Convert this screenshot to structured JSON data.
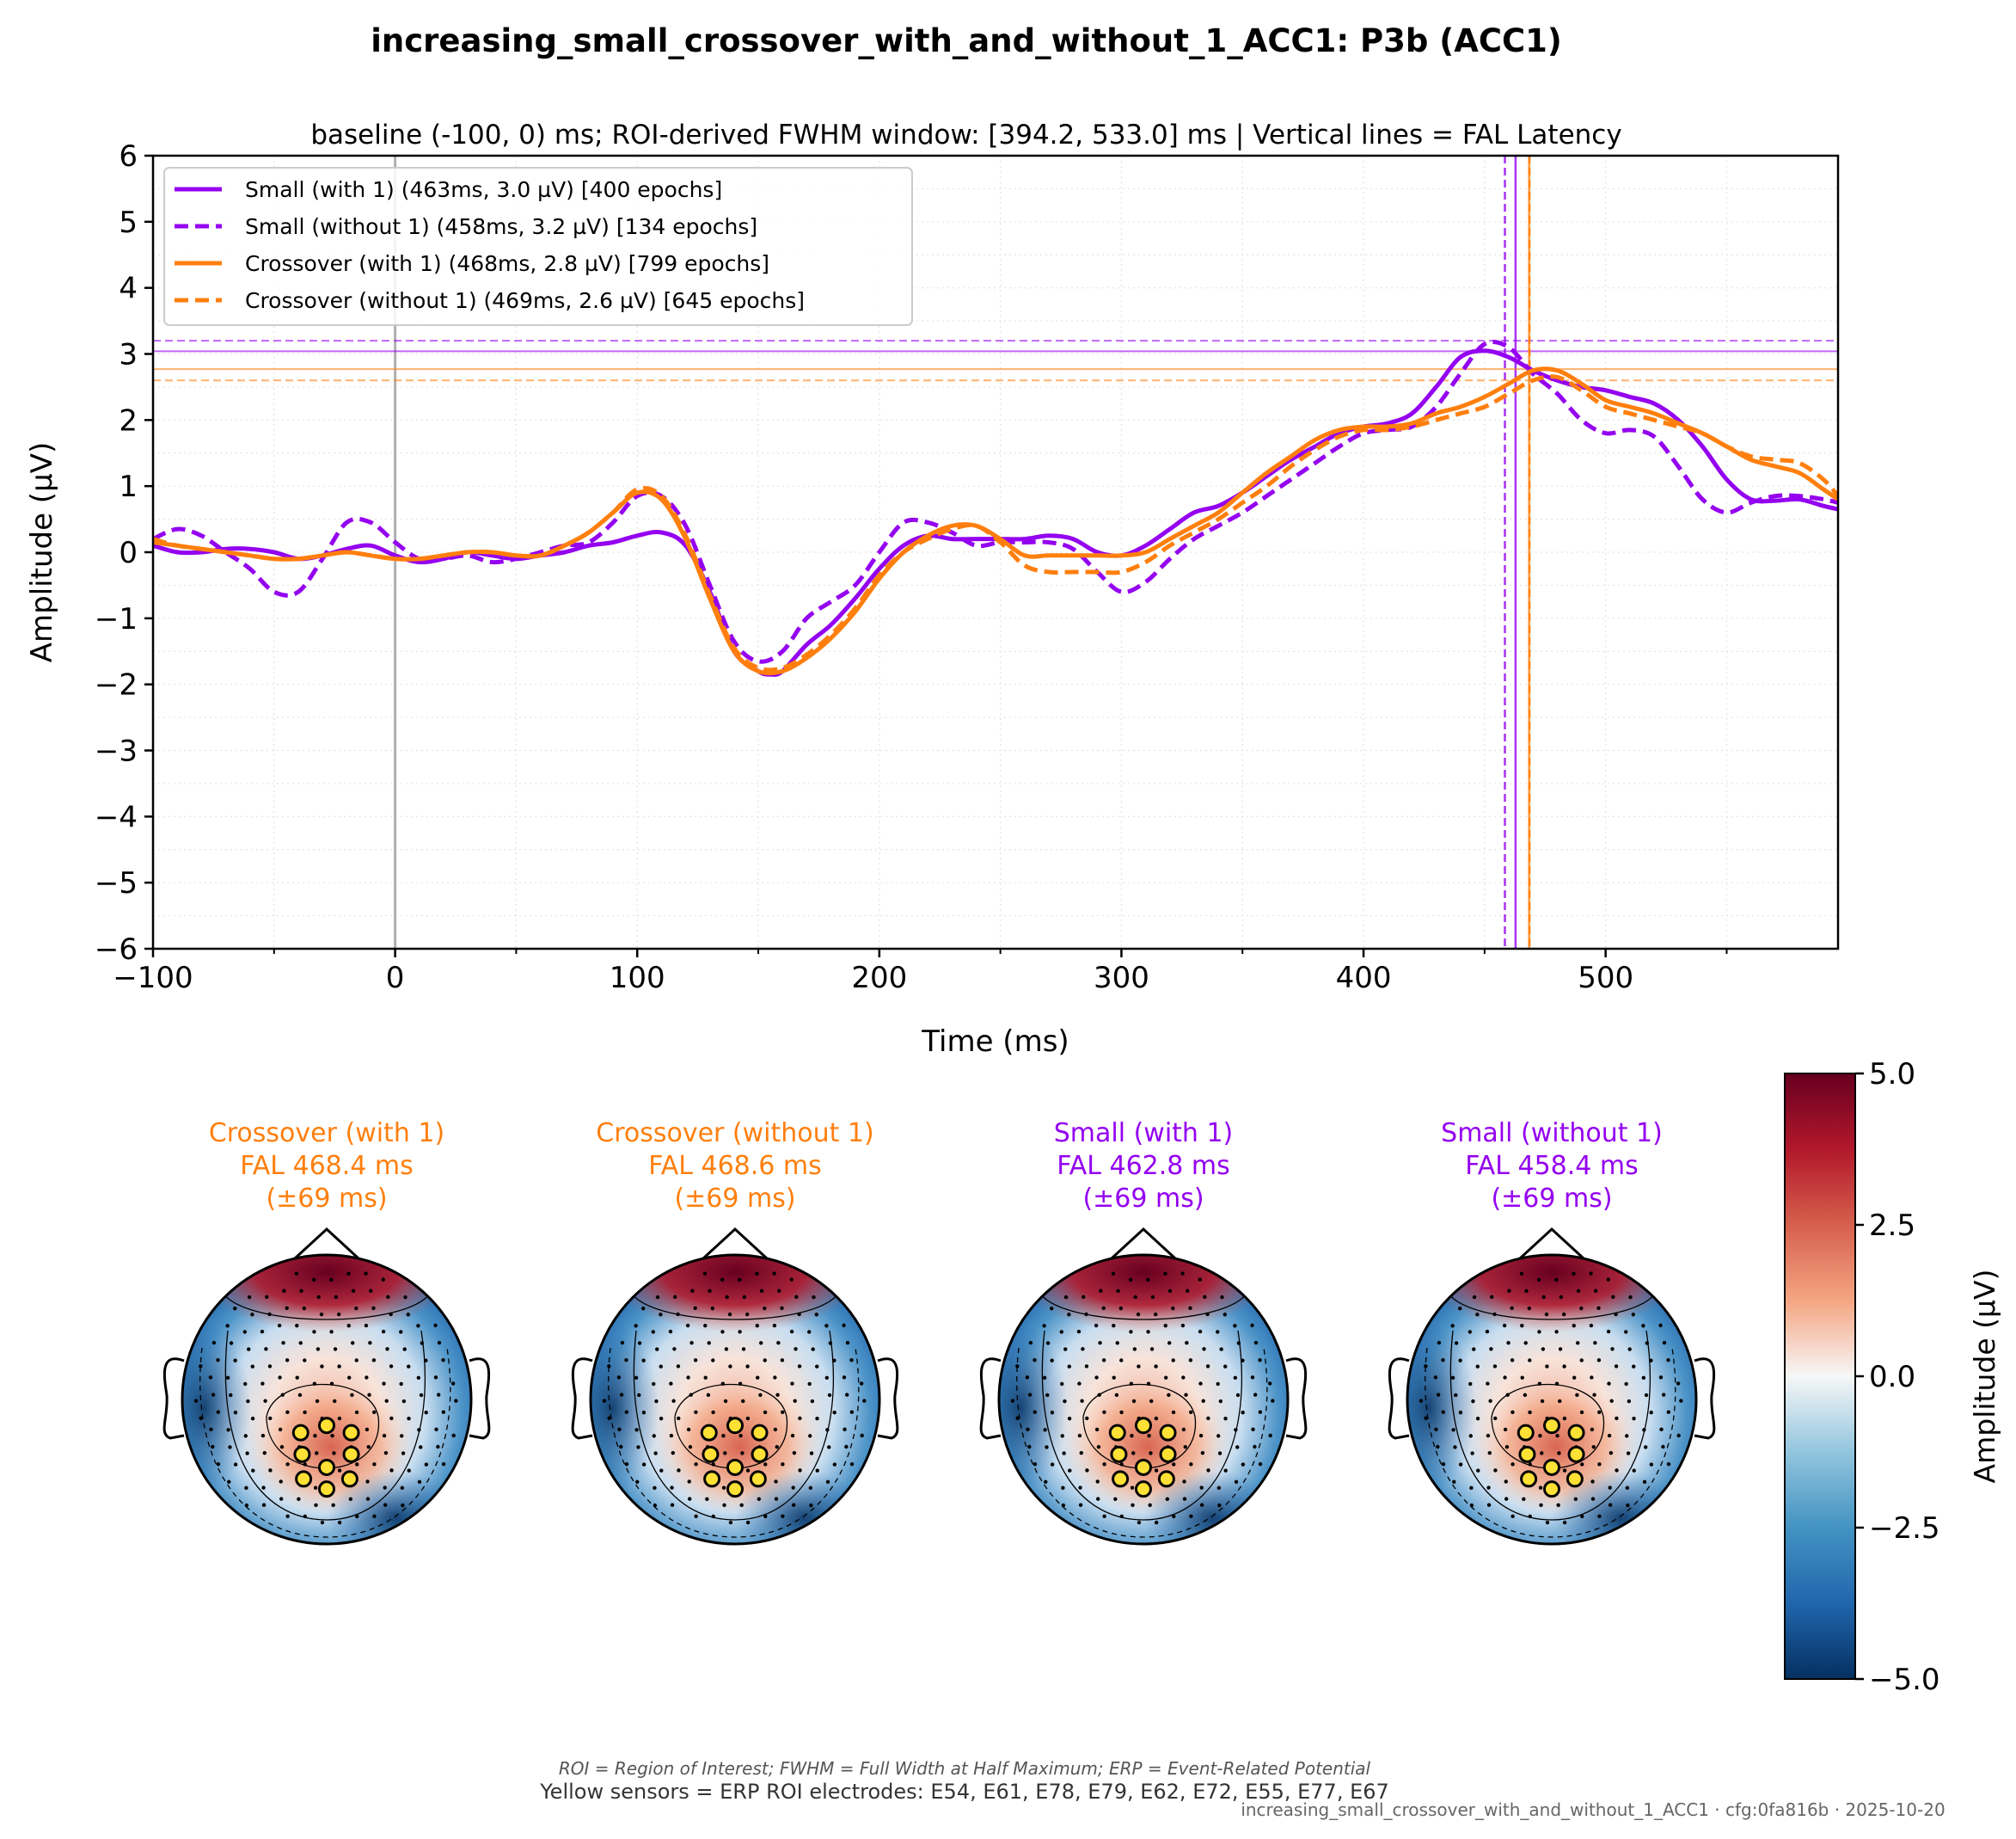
{
  "figure": {
    "title": "increasing_small_crossover_with_and_without_1_ACC1: P3b (ACC1)",
    "footer": {
      "abbrev": "ROI = Region of Interest; FWHM = Full Width at Half Maximum; ERP = Event-Related Potential",
      "sensors": "Yellow sensors = ERP ROI electrodes: E54, E61, E78, E79, E62, E72, E55, E77, E67",
      "stamp": "increasing_small_crossover_with_and_without_1_ACC1 · cfg:0fa816b · 2025-10-20"
    }
  },
  "chart_data": [
    {
      "type": "line",
      "subtitle": "baseline (-100, 0) ms; ROI-derived FWHM window: [394.2, 533.0] ms | Vertical lines = FAL Latency",
      "xlabel": "Time (ms)",
      "ylabel": "Amplitude (µV)",
      "xlim": [
        -100,
        596
      ],
      "ylim": [
        -6,
        6
      ],
      "xticks": [
        -100,
        0,
        100,
        200,
        300,
        400,
        500
      ],
      "xtick_labels": [
        "−100",
        "0",
        "100",
        "200",
        "300",
        "400",
        "500"
      ],
      "yticks": [
        -6,
        -5,
        -4,
        -3,
        -2,
        -1,
        0,
        1,
        2,
        3,
        4,
        5,
        6
      ],
      "ytick_labels": [
        "−6",
        "−5",
        "−4",
        "−3",
        "−2",
        "−1",
        "0",
        "1",
        "2",
        "3",
        "4",
        "5",
        "6"
      ],
      "grid": true,
      "legend_position": "top-left",
      "stimulus_onset": 0,
      "series": [
        {
          "name": "Small (with 1) (463ms, 3.0 µV) [400 epochs]",
          "color": "#9400F0",
          "dash": "solid",
          "fal_latency": 462.8,
          "fal_amplitude": 3.04,
          "x": [
            -100,
            -90,
            -80,
            -70,
            -60,
            -50,
            -40,
            -30,
            -20,
            -10,
            0,
            10,
            20,
            30,
            40,
            50,
            60,
            70,
            80,
            90,
            100,
            110,
            120,
            130,
            140,
            150,
            155,
            160,
            170,
            180,
            190,
            200,
            210,
            220,
            230,
            240,
            250,
            260,
            270,
            280,
            290,
            300,
            310,
            320,
            330,
            340,
            350,
            360,
            370,
            380,
            390,
            400,
            410,
            420,
            430,
            440,
            450,
            460,
            470,
            480,
            490,
            500,
            510,
            520,
            530,
            540,
            550,
            560,
            570,
            580,
            590,
            596
          ],
          "y": [
            0.1,
            0.0,
            0.0,
            0.05,
            0.05,
            0.0,
            -0.1,
            -0.05,
            0.05,
            0.1,
            -0.05,
            -0.15,
            -0.1,
            0.0,
            -0.05,
            -0.1,
            -0.05,
            0.0,
            0.1,
            0.15,
            0.25,
            0.3,
            0.1,
            -0.6,
            -1.5,
            -1.8,
            -1.85,
            -1.8,
            -1.4,
            -1.1,
            -0.7,
            -0.25,
            0.1,
            0.25,
            0.2,
            0.2,
            0.2,
            0.2,
            0.25,
            0.2,
            0.0,
            -0.05,
            0.1,
            0.35,
            0.6,
            0.7,
            0.9,
            1.15,
            1.4,
            1.6,
            1.8,
            1.9,
            1.95,
            2.1,
            2.5,
            2.95,
            3.05,
            2.95,
            2.75,
            2.6,
            2.5,
            2.45,
            2.35,
            2.25,
            2.0,
            1.6,
            1.1,
            0.8,
            0.78,
            0.8,
            0.7,
            0.65
          ]
        },
        {
          "name": "Small (without 1) (458ms, 3.2 µV) [134 epochs]",
          "color": "#9400F0",
          "dash": "dashed",
          "fal_latency": 458.4,
          "fal_amplitude": 3.2,
          "x": [
            -100,
            -90,
            -80,
            -70,
            -60,
            -50,
            -40,
            -30,
            -20,
            -10,
            0,
            10,
            20,
            30,
            40,
            50,
            60,
            70,
            80,
            90,
            100,
            110,
            120,
            130,
            140,
            150,
            160,
            170,
            180,
            190,
            200,
            210,
            220,
            230,
            240,
            250,
            260,
            270,
            280,
            290,
            300,
            310,
            320,
            330,
            340,
            350,
            360,
            370,
            380,
            390,
            400,
            410,
            420,
            430,
            440,
            450,
            460,
            470,
            480,
            490,
            500,
            510,
            520,
            530,
            540,
            550,
            560,
            570,
            580,
            590,
            596
          ],
          "y": [
            0.2,
            0.35,
            0.25,
            0.0,
            -0.25,
            -0.6,
            -0.6,
            -0.1,
            0.45,
            0.45,
            0.15,
            -0.1,
            -0.1,
            -0.05,
            -0.15,
            -0.1,
            0.0,
            0.1,
            0.15,
            0.45,
            0.85,
            0.85,
            0.4,
            -0.5,
            -1.35,
            -1.65,
            -1.5,
            -1.0,
            -0.75,
            -0.5,
            0.0,
            0.45,
            0.45,
            0.3,
            0.1,
            0.15,
            0.15,
            0.15,
            0.05,
            -0.3,
            -0.6,
            -0.45,
            -0.1,
            0.2,
            0.4,
            0.6,
            0.85,
            1.1,
            1.35,
            1.6,
            1.8,
            1.85,
            1.9,
            2.2,
            2.7,
            3.15,
            3.1,
            2.7,
            2.4,
            2.0,
            1.8,
            1.85,
            1.75,
            1.3,
            0.8,
            0.6,
            0.75,
            0.85,
            0.85,
            0.8,
            0.75
          ]
        },
        {
          "name": "Crossover (with 1) (468ms, 2.8 µV) [799 epochs]",
          "color": "#FF7F0E",
          "dash": "solid",
          "fal_latency": 468.4,
          "fal_amplitude": 2.77,
          "x": [
            -100,
            -90,
            -80,
            -70,
            -60,
            -50,
            -40,
            -30,
            -20,
            -10,
            0,
            10,
            20,
            30,
            40,
            50,
            60,
            70,
            80,
            90,
            100,
            110,
            120,
            130,
            140,
            150,
            160,
            170,
            180,
            190,
            200,
            210,
            220,
            230,
            240,
            250,
            260,
            270,
            280,
            290,
            300,
            310,
            320,
            330,
            340,
            350,
            360,
            370,
            380,
            390,
            400,
            410,
            420,
            430,
            440,
            450,
            460,
            470,
            480,
            490,
            500,
            510,
            520,
            530,
            540,
            550,
            560,
            570,
            580,
            590,
            596
          ],
          "y": [
            0.15,
            0.1,
            0.05,
            0.0,
            -0.05,
            -0.1,
            -0.1,
            -0.05,
            0.0,
            -0.05,
            -0.1,
            -0.1,
            -0.05,
            0.0,
            0.0,
            -0.05,
            -0.05,
            0.1,
            0.3,
            0.6,
            0.9,
            0.8,
            0.2,
            -0.7,
            -1.5,
            -1.8,
            -1.8,
            -1.6,
            -1.3,
            -0.9,
            -0.4,
            0.0,
            0.25,
            0.4,
            0.4,
            0.2,
            -0.05,
            -0.05,
            -0.05,
            -0.05,
            -0.05,
            0.0,
            0.2,
            0.4,
            0.6,
            0.9,
            1.2,
            1.45,
            1.7,
            1.85,
            1.9,
            1.9,
            1.95,
            2.1,
            2.2,
            2.35,
            2.55,
            2.75,
            2.75,
            2.55,
            2.3,
            2.2,
            2.1,
            1.95,
            1.8,
            1.6,
            1.4,
            1.3,
            1.2,
            0.95,
            0.8
          ]
        },
        {
          "name": "Crossover (without 1) (469ms, 2.6 µV) [645 epochs]",
          "color": "#FF7F0E",
          "dash": "dashed",
          "fal_latency": 468.6,
          "fal_amplitude": 2.6,
          "x": [
            -100,
            -90,
            -80,
            -70,
            -60,
            -50,
            -40,
            -30,
            -20,
            -10,
            0,
            10,
            20,
            30,
            40,
            50,
            60,
            70,
            80,
            90,
            100,
            110,
            120,
            130,
            140,
            150,
            160,
            170,
            180,
            190,
            200,
            210,
            220,
            230,
            240,
            250,
            260,
            270,
            280,
            290,
            300,
            310,
            320,
            330,
            340,
            350,
            360,
            370,
            380,
            390,
            400,
            410,
            420,
            430,
            440,
            450,
            460,
            470,
            480,
            490,
            500,
            510,
            520,
            530,
            540,
            550,
            560,
            570,
            580,
            590,
            596
          ],
          "y": [
            0.2,
            0.1,
            0.05,
            0.0,
            -0.05,
            -0.1,
            -0.1,
            -0.05,
            0.0,
            -0.05,
            -0.1,
            -0.1,
            -0.05,
            0.0,
            0.0,
            -0.05,
            -0.05,
            0.1,
            0.3,
            0.6,
            0.95,
            0.85,
            0.25,
            -0.65,
            -1.45,
            -1.75,
            -1.75,
            -1.55,
            -1.25,
            -0.85,
            -0.35,
            0.0,
            0.2,
            0.35,
            0.4,
            0.15,
            -0.2,
            -0.3,
            -0.3,
            -0.3,
            -0.3,
            -0.15,
            0.1,
            0.3,
            0.5,
            0.75,
            1.0,
            1.3,
            1.55,
            1.75,
            1.85,
            1.85,
            1.9,
            2.0,
            2.1,
            2.2,
            2.4,
            2.6,
            2.65,
            2.45,
            2.2,
            2.1,
            2.0,
            1.9,
            1.8,
            1.6,
            1.45,
            1.4,
            1.35,
            1.1,
            0.85
          ]
        }
      ]
    },
    {
      "type": "heatmap",
      "colorbar_label": "Amplitude (µV)",
      "colormap": "RdBu_r",
      "vlim": [
        -5.0,
        5.0
      ],
      "ticks": [
        -5.0,
        -2.5,
        0.0,
        2.5,
        5.0
      ],
      "tick_labels": [
        "−5.0",
        "−2.5",
        "0.0",
        "2.5",
        "5.0"
      ],
      "topomaps": [
        {
          "name": "Crossover (with 1)",
          "title": [
            "Crossover (with 1)",
            "FAL 468.4 ms",
            "(±69 ms)"
          ],
          "color": "#FF7F0E"
        },
        {
          "name": "Crossover (without 1)",
          "title": [
            "Crossover (without 1)",
            "FAL 468.6 ms",
            "(±69 ms)"
          ],
          "color": "#FF7F0E"
        },
        {
          "name": "Small (with 1)",
          "title": [
            "Small (with 1)",
            "FAL 462.8 ms",
            "(±69 ms)"
          ],
          "color": "#9400F0"
        },
        {
          "name": "Small (without 1)",
          "title": [
            "Small (without 1)",
            "FAL 458.4 ms",
            "(±69 ms)"
          ],
          "color": "#9400F0"
        }
      ]
    }
  ]
}
